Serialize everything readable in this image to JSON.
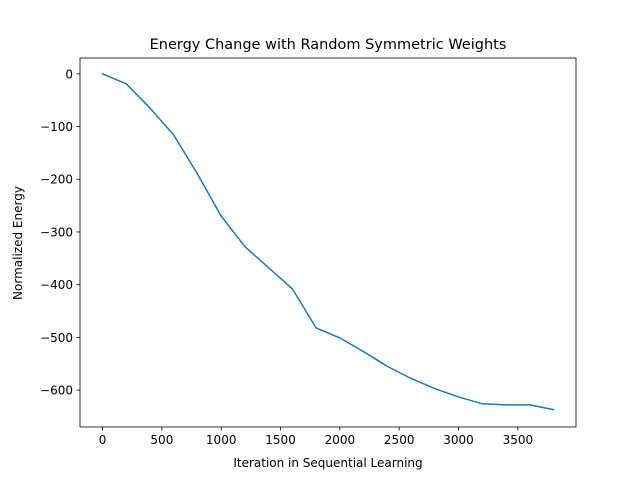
{
  "chart_data": {
    "type": "line",
    "title": "Energy Change with Random Symmetric Weights",
    "xlabel": "Iteration in Sequential Learning",
    "ylabel": "Normalized Energy",
    "xlim": [
      -190,
      3990
    ],
    "ylim": [
      -670,
      30
    ],
    "xticks": [
      0,
      500,
      1000,
      1500,
      2000,
      2500,
      3000,
      3500
    ],
    "xtick_labels": [
      "0",
      "500",
      "1000",
      "1500",
      "2000",
      "2500",
      "3000",
      "3500"
    ],
    "yticks": [
      0,
      -100,
      -200,
      -300,
      -400,
      -500,
      -600
    ],
    "ytick_labels": [
      "0",
      "−100",
      "−200",
      "−300",
      "−400",
      "−500",
      "−600"
    ],
    "grid": false,
    "series": [
      {
        "color": "#1f77b4",
        "x": [
          0,
          200,
          400,
          600,
          800,
          1000,
          1200,
          1400,
          1600,
          1800,
          2000,
          2200,
          2400,
          2600,
          2800,
          3000,
          3200,
          3400,
          3600,
          3800
        ],
        "y": [
          0,
          -19,
          -65,
          -116,
          -190,
          -270,
          -328,
          -368,
          -408,
          -482,
          -501,
          -527,
          -555,
          -578,
          -597,
          -613,
          -626,
          -628,
          -628,
          -637
        ]
      }
    ]
  }
}
